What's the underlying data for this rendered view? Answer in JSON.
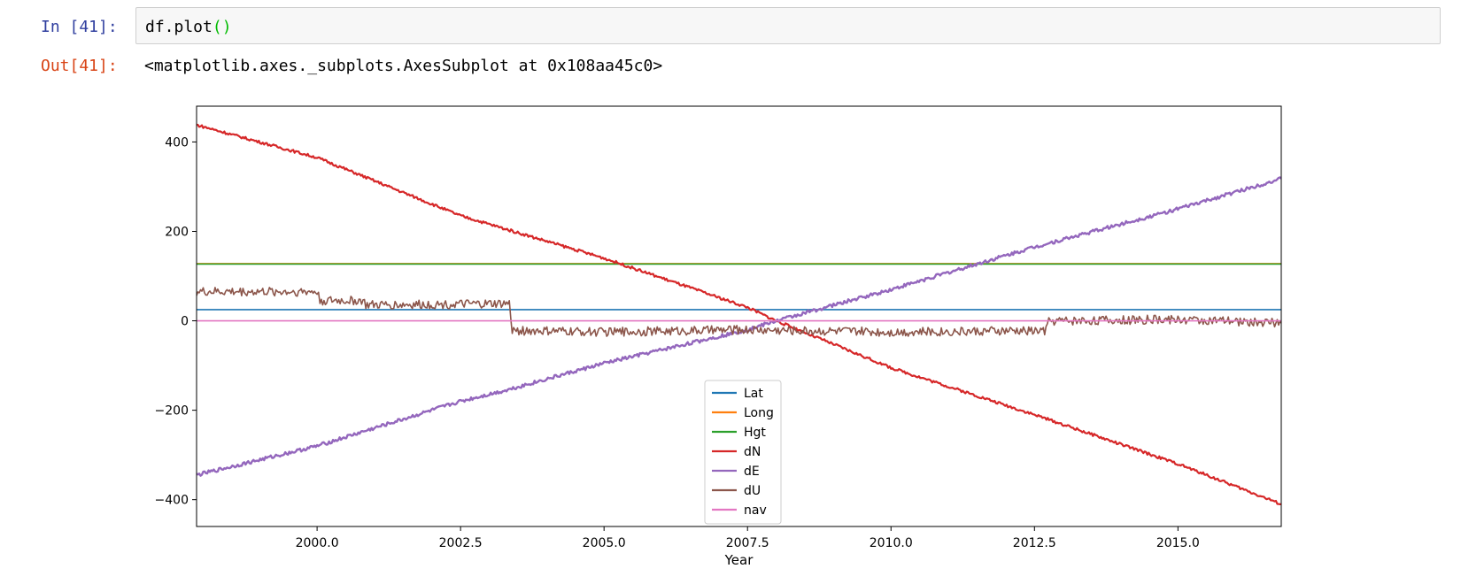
{
  "input_cell": {
    "prompt": "In [41]:",
    "code": "df.plot",
    "code_parens": "()"
  },
  "output_cell": {
    "prompt": "Out[41]:",
    "text": "<matplotlib.axes._subplots.AxesSubplot at 0x108aa45c0>"
  },
  "chart_data": {
    "type": "line",
    "xlabel": "Year",
    "ylabel": "",
    "xlim": [
      1997.9,
      2016.8
    ],
    "ylim": [
      -460,
      480
    ],
    "xticks": [
      2000.0,
      2002.5,
      2005.0,
      2007.5,
      2010.0,
      2012.5,
      2015.0
    ],
    "xtick_labels": [
      "2000.0",
      "2002.5",
      "2005.0",
      "2007.5",
      "2010.0",
      "2012.5",
      "2015.0"
    ],
    "yticks": [
      400,
      200,
      0,
      -200,
      -400
    ],
    "ytick_labels": [
      "400",
      "200",
      "0",
      "−200",
      "−400"
    ],
    "grid": false,
    "legend_position": "lower-center",
    "series": [
      {
        "name": "Lat",
        "color": "#1f77b4",
        "x": [
          1997.9,
          2016.8
        ],
        "y": [
          25,
          25
        ]
      },
      {
        "name": "Long",
        "color": "#ff7f0e",
        "x": [
          1997.9,
          2016.8
        ],
        "y": [
          128,
          128
        ]
      },
      {
        "name": "Hgt",
        "color": "#2ca02c",
        "x": [
          1997.9,
          2016.8
        ],
        "y": [
          127,
          127
        ]
      },
      {
        "name": "dN",
        "color": "#d62728",
        "x": [
          1997.9,
          2000.0,
          2002.5,
          2005.0,
          2007.5,
          2008.0,
          2010.0,
          2012.5,
          2015.0,
          2016.8
        ],
        "y": [
          438,
          365,
          235,
          140,
          30,
          0,
          -105,
          -210,
          -320,
          -410
        ]
      },
      {
        "name": "dE",
        "color": "#9467bd",
        "x": [
          1997.9,
          2000.0,
          2002.5,
          2003.3,
          2005.0,
          2007.5,
          2008.0,
          2010.0,
          2012.5,
          2015.0,
          2016.8
        ],
        "y": [
          -345,
          -280,
          -180,
          -155,
          -95,
          -20,
          0,
          70,
          165,
          250,
          318
        ]
      },
      {
        "name": "dU",
        "color": "#8c564b",
        "x": [
          1997.9,
          2000.0,
          2000.05,
          2000.8,
          2000.85,
          2003.35,
          2003.4,
          2005.0,
          2007.5,
          2010.0,
          2012.7,
          2012.75,
          2015.0,
          2016.8
        ],
        "y": [
          65,
          65,
          45,
          45,
          35,
          38,
          -22,
          -25,
          -20,
          -25,
          -22,
          0,
          3,
          -5
        ]
      },
      {
        "name": "nav",
        "color": "#e377c2",
        "x": [
          1997.9,
          2016.8
        ],
        "y": [
          0,
          0
        ]
      }
    ]
  }
}
